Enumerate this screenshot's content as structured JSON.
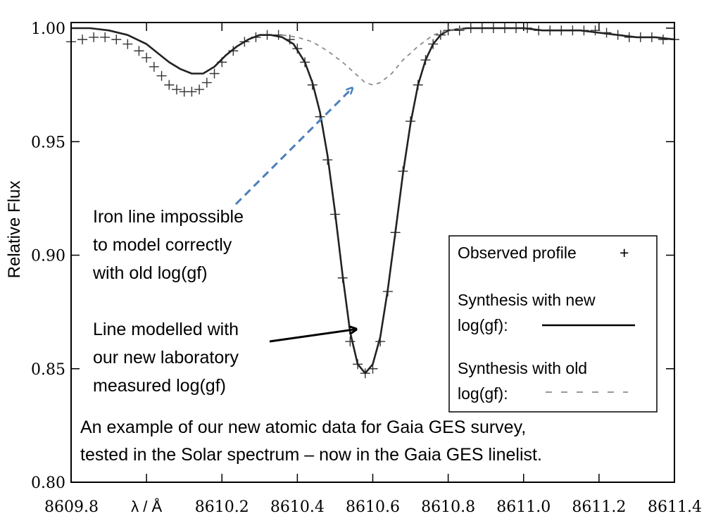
{
  "chart_data": {
    "type": "line",
    "title": "",
    "xlabel": "λ / Å",
    "ylabel": "Relative Flux",
    "xlim": [
      8609.8,
      8611.4
    ],
    "ylim": [
      0.8,
      1.005
    ],
    "x_ticks": [
      8609.8,
      8610.0,
      8610.2,
      8610.4,
      8610.6,
      8610.8,
      8611.0,
      8611.2,
      8611.4
    ],
    "x_tick_labels": [
      "8609.8",
      "λ  / Å",
      "8610.2",
      "8610.4",
      "8610.6",
      "8610.8",
      "8611.0",
      "8611.2",
      "8611.4"
    ],
    "y_ticks": [
      0.8,
      0.85,
      0.9,
      0.95,
      1.0
    ],
    "y_tick_labels": [
      "0.80",
      "0.85",
      "0.90",
      "0.95",
      "1.00"
    ],
    "series": [
      {
        "name": "Observed profile",
        "style": "plus-markers",
        "color": "#333333",
        "x": [
          8609.8,
          8609.83,
          8609.86,
          8609.89,
          8609.92,
          8609.95,
          8609.98,
          8610.0,
          8610.02,
          8610.04,
          8610.06,
          8610.08,
          8610.1,
          8610.12,
          8610.14,
          8610.16,
          8610.18,
          8610.2,
          8610.23,
          8610.26,
          8610.29,
          8610.32,
          8610.35,
          8610.38,
          8610.4,
          8610.42,
          8610.44,
          8610.46,
          8610.48,
          8610.5,
          8610.52,
          8610.54,
          8610.56,
          8610.58,
          8610.6,
          8610.62,
          8610.64,
          8610.66,
          8610.68,
          8610.7,
          8610.72,
          8610.74,
          8610.76,
          8610.78,
          8610.8,
          8610.83,
          8610.86,
          8610.89,
          8610.92,
          8610.95,
          8610.98,
          8611.01,
          8611.04,
          8611.07,
          8611.1,
          8611.13,
          8611.16,
          8611.19,
          8611.22,
          8611.25,
          8611.28,
          8611.31,
          8611.34,
          8611.37,
          8611.4
        ],
        "y": [
          0.994,
          0.995,
          0.996,
          0.996,
          0.995,
          0.993,
          0.99,
          0.987,
          0.983,
          0.979,
          0.975,
          0.973,
          0.972,
          0.972,
          0.973,
          0.976,
          0.98,
          0.985,
          0.99,
          0.994,
          0.996,
          0.997,
          0.997,
          0.995,
          0.991,
          0.985,
          0.975,
          0.961,
          0.942,
          0.918,
          0.89,
          0.862,
          0.852,
          0.848,
          0.85,
          0.862,
          0.884,
          0.91,
          0.937,
          0.959,
          0.975,
          0.986,
          0.993,
          0.997,
          0.999,
          0.999,
          1.0,
          1.0,
          1.0,
          1.0,
          1.0,
          1.0,
          0.999,
          0.999,
          0.999,
          0.999,
          0.999,
          0.999,
          0.998,
          0.997,
          0.996,
          0.996,
          0.996,
          0.995,
          0.995
        ]
      },
      {
        "name": "Synthesis with new log(gf)",
        "style": "solid",
        "color": "#222222",
        "x": [
          8609.8,
          8609.85,
          8609.9,
          8609.95,
          8610.0,
          8610.03,
          8610.06,
          8610.09,
          8610.12,
          8610.15,
          8610.18,
          8610.21,
          8610.24,
          8610.27,
          8610.3,
          8610.33,
          8610.36,
          8610.39,
          8610.42,
          8610.44,
          8610.46,
          8610.48,
          8610.5,
          8610.52,
          8610.54,
          8610.56,
          8610.58,
          8610.6,
          8610.62,
          8610.64,
          8610.66,
          8610.68,
          8610.7,
          8610.72,
          8610.74,
          8610.76,
          8610.78,
          8610.8,
          8610.85,
          8610.9,
          8610.95,
          8611.0,
          8611.05,
          8611.1,
          8611.15,
          8611.2,
          8611.25,
          8611.3,
          8611.35,
          8611.4
        ],
        "y": [
          1.0,
          1.0,
          0.999,
          0.997,
          0.993,
          0.989,
          0.985,
          0.982,
          0.98,
          0.98,
          0.983,
          0.988,
          0.992,
          0.995,
          0.997,
          0.997,
          0.996,
          0.993,
          0.985,
          0.976,
          0.963,
          0.944,
          0.919,
          0.891,
          0.866,
          0.852,
          0.848,
          0.852,
          0.864,
          0.885,
          0.91,
          0.936,
          0.958,
          0.975,
          0.986,
          0.993,
          0.997,
          0.999,
          1.0,
          1.0,
          1.0,
          1.0,
          0.999,
          0.999,
          0.999,
          0.998,
          0.997,
          0.996,
          0.996,
          0.995
        ]
      },
      {
        "name": "Synthesis with old log(gf)",
        "style": "dashed",
        "color": "#8c8c8c",
        "x": [
          8610.36,
          8610.4,
          8610.44,
          8610.48,
          8610.52,
          8610.56,
          8610.58,
          8610.6,
          8610.62,
          8610.65,
          8610.68,
          8610.72,
          8610.76,
          8610.8,
          8610.84
        ],
        "y": [
          0.997,
          0.996,
          0.994,
          0.99,
          0.985,
          0.979,
          0.976,
          0.975,
          0.976,
          0.98,
          0.986,
          0.992,
          0.997,
          0.999,
          1.0
        ]
      }
    ],
    "legend": {
      "placement": "bottom-right",
      "entries": [
        {
          "label": "Observed profile",
          "symbol": "+"
        },
        {
          "label_lines": [
            "Synthesis with new",
            "log(gf):"
          ],
          "line": "solid"
        },
        {
          "label_lines": [
            "Synthesis with old",
            "log(gf):"
          ],
          "line": "dashed"
        }
      ]
    },
    "annotations": [
      {
        "id": "old",
        "lines": [
          "Iron line impossible",
          "to model correctly",
          "with old log(gf)"
        ],
        "arrow": "dashed-blue",
        "arrow_color": "#4a7ebb",
        "arrow_target": [
          8610.56,
          0.976
        ]
      },
      {
        "id": "new",
        "lines": [
          "Line modelled with",
          "our new laboratory",
          "measured log(gf)"
        ],
        "arrow": "solid-black",
        "arrow_target": [
          8610.57,
          0.868
        ]
      }
    ],
    "caption_lines": [
      "An example of our new atomic data for Gaia GES survey,",
      "tested in the Solar spectrum – now in  the Gaia GES linelist."
    ]
  }
}
